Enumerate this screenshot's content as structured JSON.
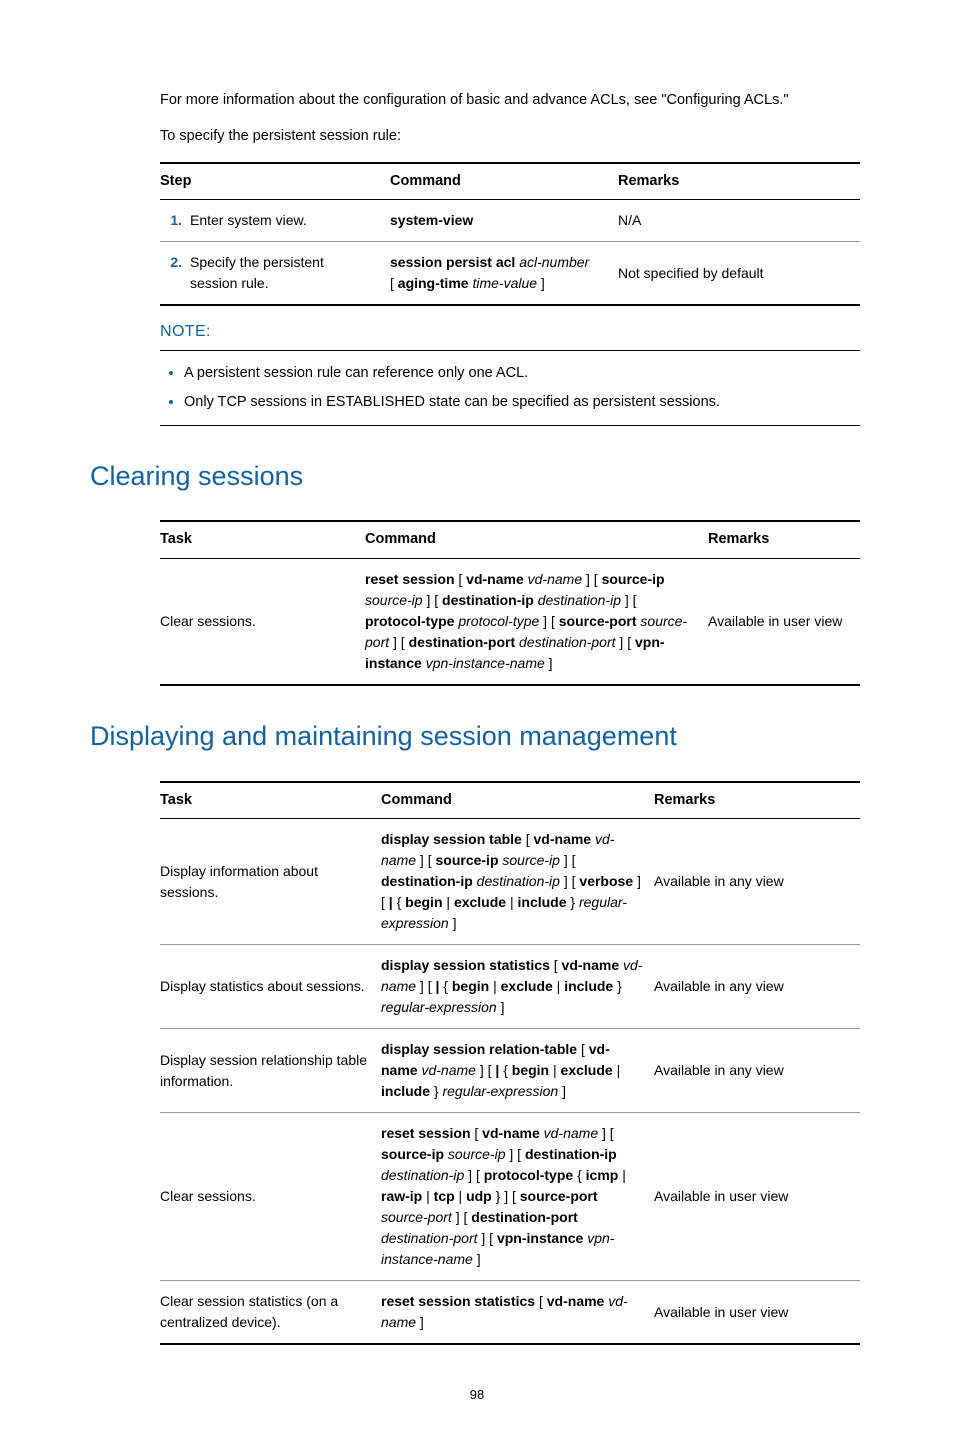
{
  "intro": {
    "line1_pre": "For more information about the configuration of basic and advance ACLs, see \"",
    "line1_link": "Configuring ACLs",
    "line1_post": ".\"",
    "line2": "To specify the persistent session rule:"
  },
  "table1": {
    "columns": [
      "Step",
      "Command",
      "Remarks"
    ],
    "col_widths": [
      "230px",
      "228px",
      "auto"
    ],
    "rows": [
      {
        "num": "1.",
        "step": "Enter system view.",
        "command_html": "<b>system-view</b>",
        "remarks": "N/A"
      },
      {
        "num": "2.",
        "step": "Specify the persistent session rule.",
        "command_html": "<b>session persist acl</b> <i>acl-number</i><br>[ <b>aging-time</b> <i>time-value</i> ]",
        "remarks": "Not specified by default"
      }
    ]
  },
  "note": {
    "label": "NOTE:",
    "items": [
      "A persistent session rule can reference only one ACL.",
      "Only TCP sessions in ESTABLISHED state can be specified as persistent sessions."
    ]
  },
  "heading1": "Clearing sessions",
  "table2": {
    "columns": [
      "Task",
      "Command",
      "Remarks"
    ],
    "col_widths": [
      "205px",
      "343px",
      "auto"
    ],
    "rows": [
      {
        "task": "Clear sessions.",
        "command_html": "<b>reset session</b> [ <b>vd-name</b> <i>vd-name</i> ] [ <b>source-ip</b> <i>source-ip</i> ] [ <b>destination-ip</b> <i>destination-ip</i> ] [ <b>protocol-type</b> <i>protocol-type</i> ] [ <b>source-port</b> <i>source-port</i> ] [ <b>destination-port</b> <i>destination-port</i> ] [ <b>vpn-instance</b> <i>vpn-instance-name</i> ]",
        "remarks": "Available in user view"
      }
    ]
  },
  "heading2": "Displaying and maintaining session management",
  "table3": {
    "columns": [
      "Task",
      "Command",
      "Remarks"
    ],
    "col_widths": [
      "221px",
      "273px",
      "auto"
    ],
    "rows": [
      {
        "task": "Display information about sessions.",
        "command_html": "<b>display session table</b> [ <b>vd-name</b> <i>vd-name</i> ] [ <b>source-ip</b> <i>source-ip</i> ] [ <b>destination-ip</b> <i>destination-ip</i> ] [ <b>verbose</b> ] [ <b>|</b> { <b>begin</b> | <b>exclude</b> | <b>include</b> } <i>regular-expression</i> ]",
        "remarks": "Available in any view"
      },
      {
        "task": "Display statistics about sessions.",
        "command_html": "<b>display session statistics</b> [ <b>vd-name</b> <i>vd-name</i> ] [ <b>|</b> { <b>begin</b> | <b>exclude</b> | <b>include</b> } <i>regular-expression</i> ]",
        "remarks": "Available in any view"
      },
      {
        "task": "Display session relationship table information.",
        "command_html": "<b>display session relation-table</b> [ <b>vd-name</b> <i>vd-name</i> ] [ <b>|</b> { <b>begin</b> | <b>exclude</b> | <b>include</b> } <i>regular-expression</i> ]",
        "remarks": "Available in any view"
      },
      {
        "task": "Clear sessions.",
        "command_html": "<b>reset session</b> [ <b>vd-name</b> <i>vd-name</i> ] [ <b>source-ip</b> <i>source-ip</i> ] [ <b>destination-ip</b> <i>destination-ip</i> ] [ <b>protocol-type</b> { <b>icmp</b> | <b>raw-ip</b> | <b>tcp</b> | <b>udp</b> } ] [ <b>source-port</b> <i>source-port</i> ] [ <b>destination-port</b> <i>destination-port</i> ] [ <b>vpn-instance</b> <i>vpn-instance-name</i> ]",
        "remarks": "Available in user view"
      },
      {
        "task": "Clear session statistics (on a centralized device).",
        "command_html": "<b>reset session statistics</b> [ <b>vd-name</b> <i>vd-name</i> ]",
        "remarks": "Available in user view"
      }
    ]
  },
  "page_number": "98"
}
